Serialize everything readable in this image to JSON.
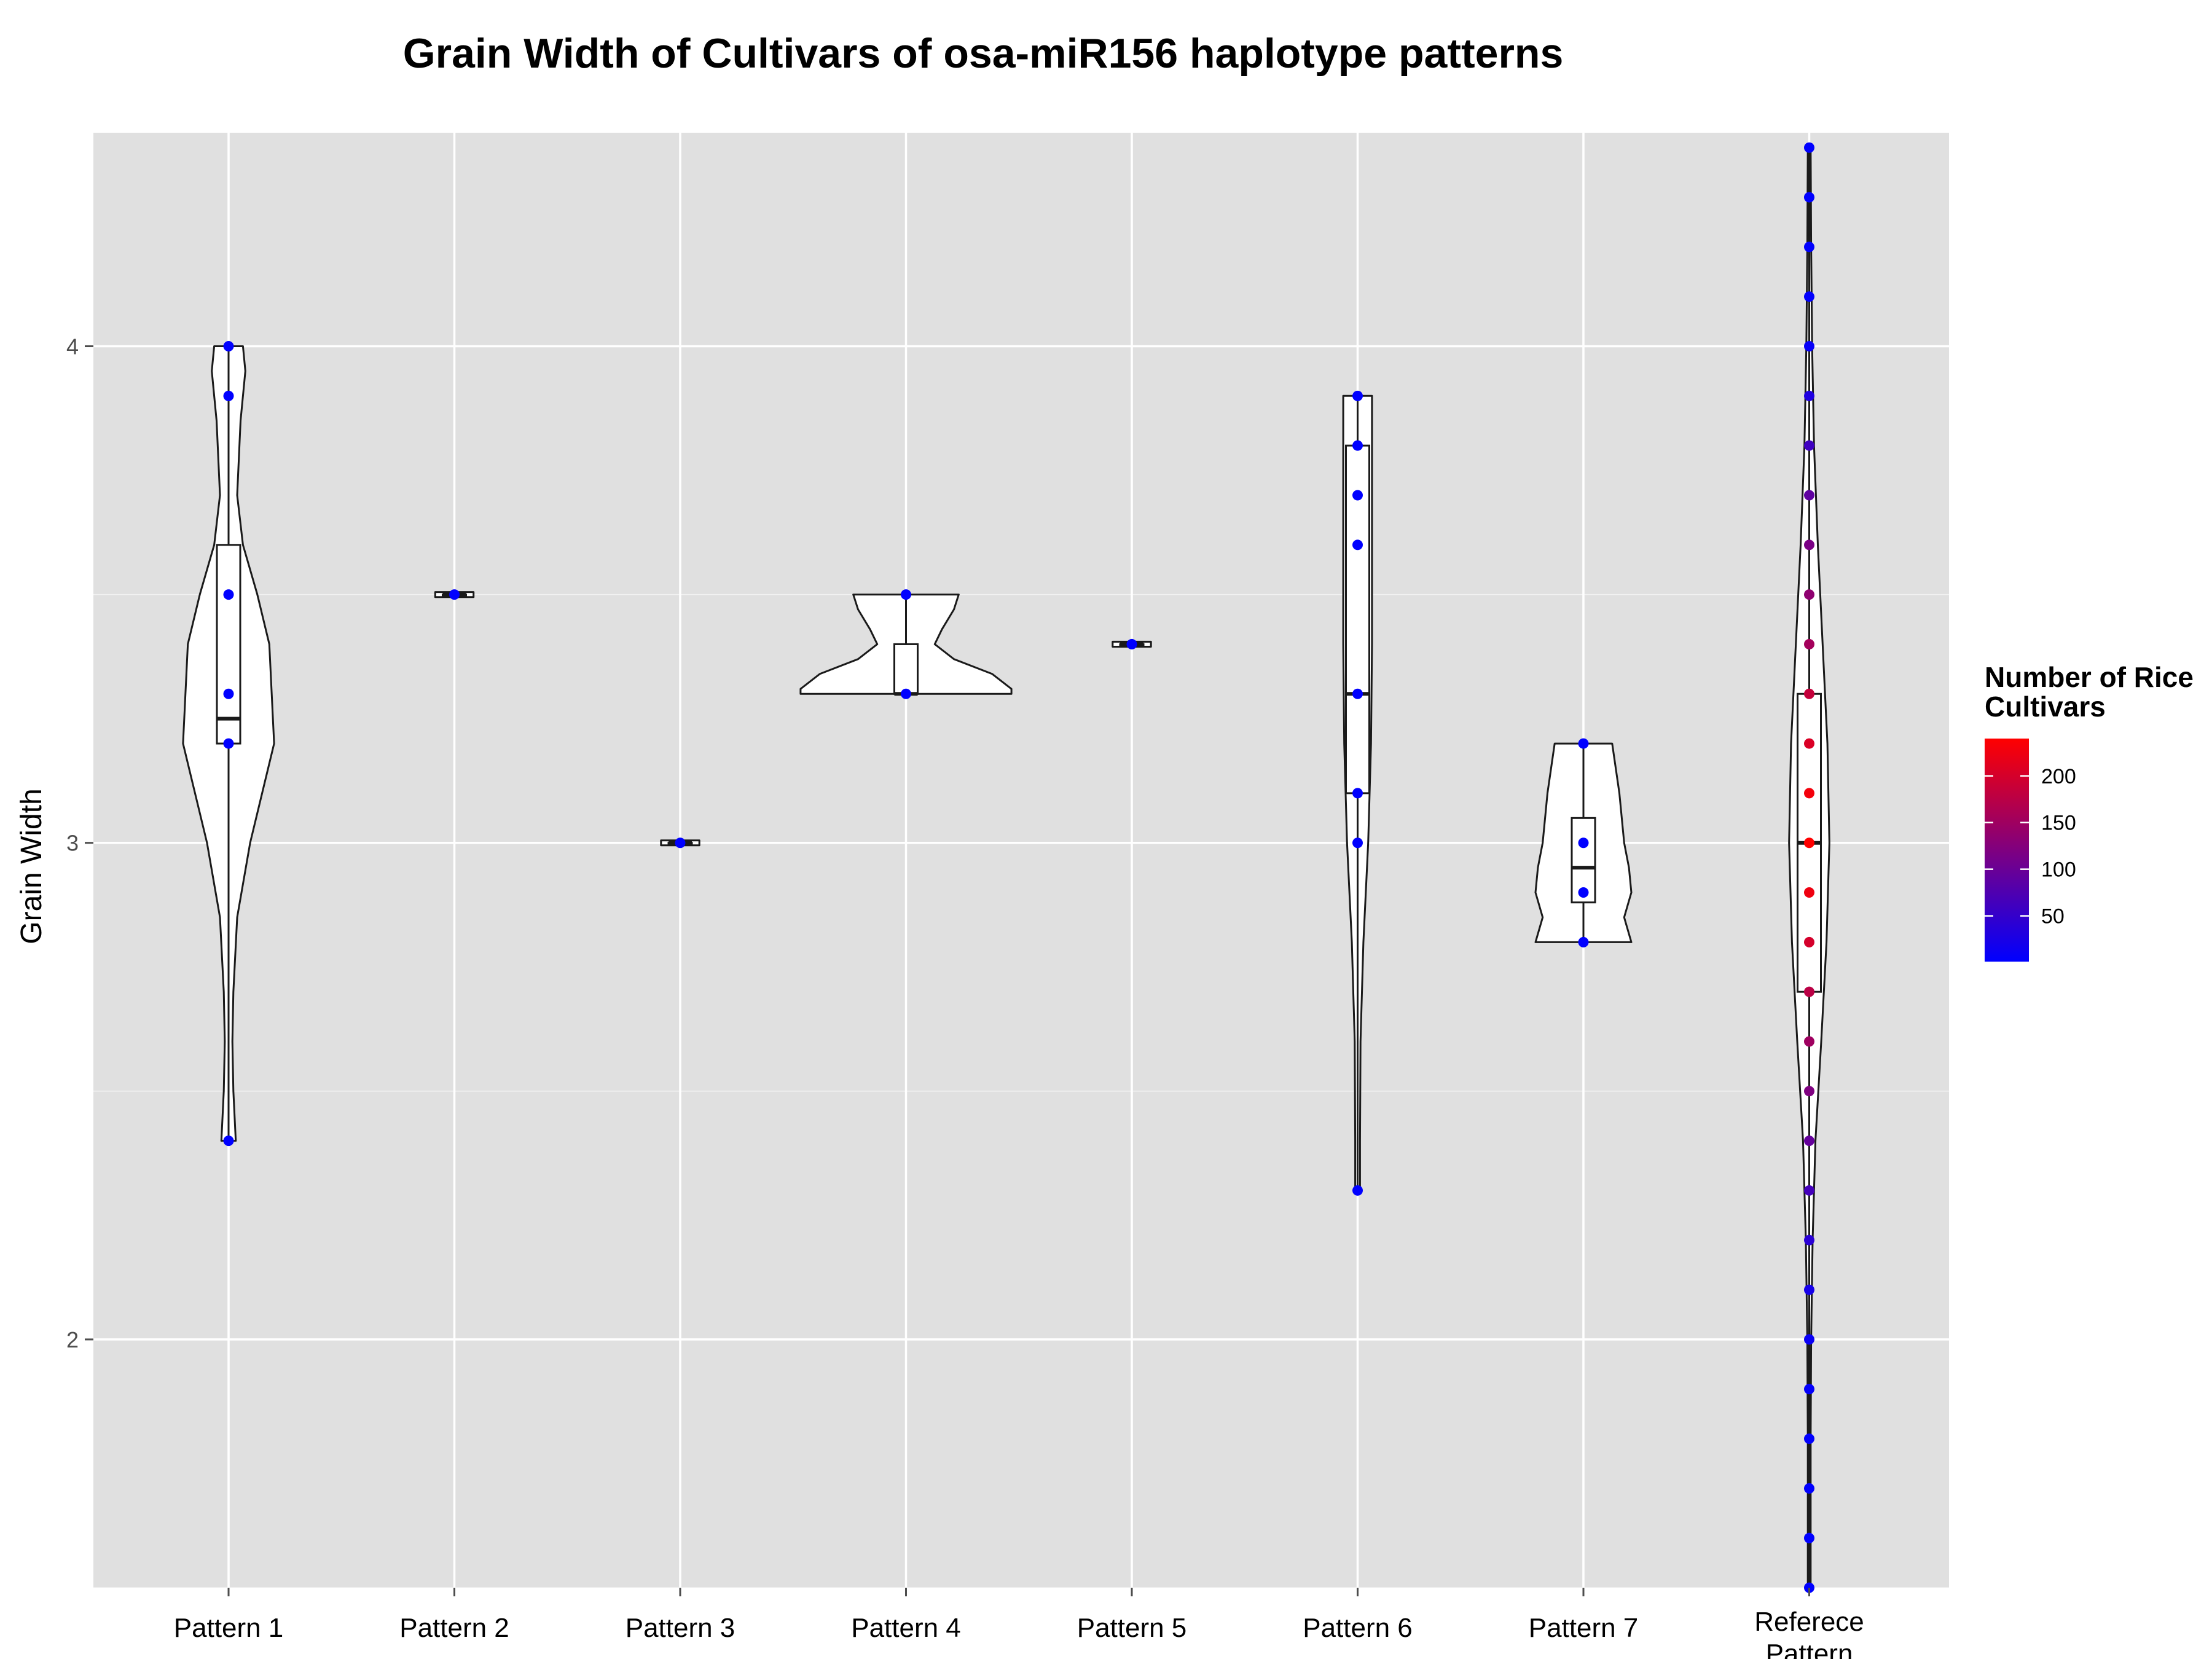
{
  "chart_data": {
    "type": "violin",
    "title": "Grain Width of Cultivars of osa-miR156 haplotype patterns",
    "xlabel": "",
    "ylabel": "Grain Width",
    "ylim": [
      1.5,
      4.43
    ],
    "yticks": [
      2,
      3,
      4
    ],
    "grid": true,
    "legend": {
      "position": "right",
      "title_lines": [
        "Number of Rice",
        "Cultivars"
      ],
      "ticks": [
        50,
        100,
        150,
        200
      ],
      "range": [
        1,
        240
      ],
      "color_low": "#0000ff",
      "color_high": "#ff0000"
    },
    "colors": {
      "panel": "#e0e0e0",
      "grid": "#ffffff",
      "violin_fill": "#ffffff",
      "outline": "#1a1a1a",
      "point_low": "#0000ff",
      "point_high": "#ff0000"
    },
    "categories": [
      "Pattern 1",
      "Pattern 2",
      "Pattern 3",
      "Pattern 4",
      "Pattern 5",
      "Pattern 6",
      "Pattern 7",
      "Referece Pattern"
    ],
    "groups": [
      {
        "name": "Pattern 1",
        "violin": [
          [
            4.0,
            0.03
          ],
          [
            3.95,
            0.035
          ],
          [
            3.85,
            0.025
          ],
          [
            3.7,
            0.018
          ],
          [
            3.6,
            0.03
          ],
          [
            3.5,
            0.06
          ],
          [
            3.4,
            0.085
          ],
          [
            3.3,
            0.09
          ],
          [
            3.2,
            0.095
          ],
          [
            3.1,
            0.07
          ],
          [
            3.0,
            0.045
          ],
          [
            2.85,
            0.018
          ],
          [
            2.7,
            0.01
          ],
          [
            2.6,
            0.008
          ],
          [
            2.5,
            0.01
          ],
          [
            2.4,
            0.015
          ]
        ],
        "box": {
          "q1": 3.2,
          "median": 3.25,
          "q3": 3.6,
          "lower": 2.4,
          "upper": 4.0
        },
        "points": [
          {
            "y": 4.0,
            "n": 1
          },
          {
            "y": 3.9,
            "n": 1
          },
          {
            "y": 3.5,
            "n": 1
          },
          {
            "y": 3.3,
            "n": 1
          },
          {
            "y": 3.2,
            "n": 1
          },
          {
            "y": 2.4,
            "n": 1
          }
        ]
      },
      {
        "name": "Pattern 2",
        "violin": [
          [
            3.505,
            0.04
          ],
          [
            3.495,
            0.04
          ]
        ],
        "box": {
          "q1": 3.5,
          "median": 3.5,
          "q3": 3.5,
          "lower": 3.5,
          "upper": 3.5
        },
        "points": [
          {
            "y": 3.5,
            "n": 1
          }
        ]
      },
      {
        "name": "Pattern 3",
        "violin": [
          [
            3.005,
            0.04
          ],
          [
            2.995,
            0.04
          ]
        ],
        "box": {
          "q1": 3.0,
          "median": 3.0,
          "q3": 3.0,
          "lower": 3.0,
          "upper": 3.0
        },
        "points": [
          {
            "y": 3.0,
            "n": 1
          }
        ]
      },
      {
        "name": "Pattern 4",
        "violin": [
          [
            3.5,
            0.11
          ],
          [
            3.47,
            0.1
          ],
          [
            3.43,
            0.075
          ],
          [
            3.4,
            0.06
          ],
          [
            3.37,
            0.1
          ],
          [
            3.34,
            0.18
          ],
          [
            3.31,
            0.22
          ],
          [
            3.3,
            0.22
          ]
        ],
        "box": {
          "q1": 3.3,
          "median": 3.3,
          "q3": 3.4,
          "lower": 3.3,
          "upper": 3.5
        },
        "points": [
          {
            "y": 3.5,
            "n": 1
          },
          {
            "y": 3.3,
            "n": 1
          }
        ]
      },
      {
        "name": "Pattern 5",
        "violin": [
          [
            3.405,
            0.04
          ],
          [
            3.395,
            0.04
          ]
        ],
        "box": {
          "q1": 3.4,
          "median": 3.4,
          "q3": 3.4,
          "lower": 3.4,
          "upper": 3.4
        },
        "points": [
          {
            "y": 3.4,
            "n": 1
          }
        ]
      },
      {
        "name": "Pattern 6",
        "violin": [
          [
            3.9,
            0.03
          ],
          [
            3.8,
            0.03
          ],
          [
            3.6,
            0.03
          ],
          [
            3.4,
            0.03
          ],
          [
            3.2,
            0.028
          ],
          [
            3.0,
            0.022
          ],
          [
            2.8,
            0.012
          ],
          [
            2.6,
            0.006
          ],
          [
            2.4,
            0.005
          ],
          [
            2.3,
            0.005
          ]
        ],
        "box": {
          "q1": 3.1,
          "median": 3.3,
          "q3": 3.8,
          "lower": 2.3,
          "upper": 3.9
        },
        "points": [
          {
            "y": 3.9,
            "n": 1
          },
          {
            "y": 3.8,
            "n": 1
          },
          {
            "y": 3.7,
            "n": 1
          },
          {
            "y": 3.6,
            "n": 1
          },
          {
            "y": 3.3,
            "n": 1
          },
          {
            "y": 3.1,
            "n": 1
          },
          {
            "y": 3.0,
            "n": 1
          },
          {
            "y": 2.3,
            "n": 1
          }
        ]
      },
      {
        "name": "Pattern 7",
        "violin": [
          [
            3.2,
            0.06
          ],
          [
            3.1,
            0.075
          ],
          [
            3.0,
            0.085
          ],
          [
            2.95,
            0.095
          ],
          [
            2.9,
            0.1
          ],
          [
            2.85,
            0.085
          ],
          [
            2.8,
            0.1
          ]
        ],
        "box": {
          "q1": 2.88,
          "median": 2.95,
          "q3": 3.05,
          "lower": 2.8,
          "upper": 3.2
        },
        "points": [
          {
            "y": 3.2,
            "n": 1
          },
          {
            "y": 3.0,
            "n": 1
          },
          {
            "y": 2.9,
            "n": 1
          },
          {
            "y": 2.8,
            "n": 1
          }
        ]
      },
      {
        "name": "Referece Pattern",
        "violin": [
          [
            4.4,
            0.003
          ],
          [
            4.2,
            0.004
          ],
          [
            4.0,
            0.006
          ],
          [
            3.8,
            0.01
          ],
          [
            3.6,
            0.018
          ],
          [
            3.4,
            0.028
          ],
          [
            3.2,
            0.038
          ],
          [
            3.0,
            0.042
          ],
          [
            2.8,
            0.036
          ],
          [
            2.6,
            0.025
          ],
          [
            2.4,
            0.013
          ],
          [
            2.2,
            0.007
          ],
          [
            2.0,
            0.004
          ],
          [
            1.8,
            0.003
          ],
          [
            1.6,
            0.003
          ],
          [
            1.5,
            0.003
          ]
        ],
        "box": {
          "q1": 2.7,
          "median": 3.0,
          "q3": 3.3,
          "lower": 1.5,
          "upper": 4.4
        },
        "points": [
          {
            "y": 4.4,
            "n": 1
          },
          {
            "y": 4.3,
            "n": 1
          },
          {
            "y": 4.2,
            "n": 2
          },
          {
            "y": 4.1,
            "n": 3
          },
          {
            "y": 4.0,
            "n": 8
          },
          {
            "y": 3.9,
            "n": 30
          },
          {
            "y": 3.8,
            "n": 60
          },
          {
            "y": 3.7,
            "n": 90
          },
          {
            "y": 3.6,
            "n": 115
          },
          {
            "y": 3.5,
            "n": 135
          },
          {
            "y": 3.4,
            "n": 155
          },
          {
            "y": 3.3,
            "n": 185
          },
          {
            "y": 3.2,
            "n": 205
          },
          {
            "y": 3.1,
            "n": 230
          },
          {
            "y": 3.0,
            "n": 240
          },
          {
            "y": 2.9,
            "n": 225
          },
          {
            "y": 2.8,
            "n": 200
          },
          {
            "y": 2.7,
            "n": 175
          },
          {
            "y": 2.6,
            "n": 150
          },
          {
            "y": 2.5,
            "n": 120
          },
          {
            "y": 2.4,
            "n": 95
          },
          {
            "y": 2.3,
            "n": 65
          },
          {
            "y": 2.2,
            "n": 40
          },
          {
            "y": 2.1,
            "n": 22
          },
          {
            "y": 2.0,
            "n": 10
          },
          {
            "y": 1.9,
            "n": 5
          },
          {
            "y": 1.8,
            "n": 3
          },
          {
            "y": 1.7,
            "n": 2
          },
          {
            "y": 1.6,
            "n": 1
          },
          {
            "y": 1.5,
            "n": 1
          }
        ]
      }
    ]
  }
}
